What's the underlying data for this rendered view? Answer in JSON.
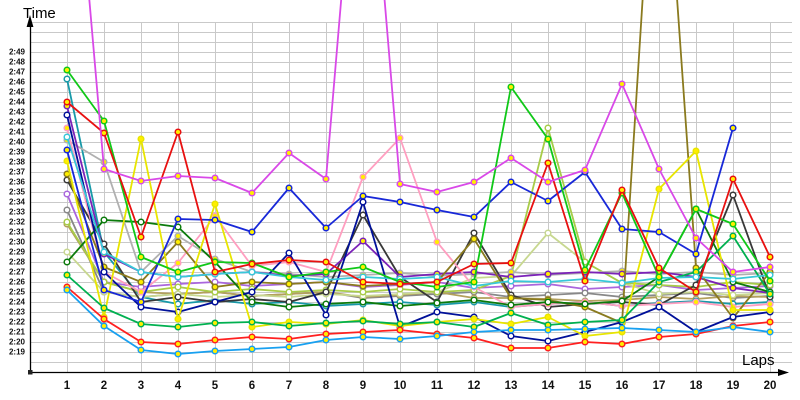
{
  "page": {
    "y_axis_title": "Time",
    "x_axis_title": "Laps"
  },
  "chart_data": {
    "type": "line",
    "title": "",
    "xlabel": "Laps",
    "ylabel": "Time",
    "x": [
      1,
      2,
      3,
      4,
      5,
      6,
      7,
      8,
      9,
      10,
      11,
      12,
      13,
      14,
      15,
      16,
      17,
      18,
      19,
      20
    ],
    "x_tick_labels": [
      "1",
      "2",
      "3",
      "4",
      "5",
      "6",
      "7",
      "8",
      "9",
      "10",
      "11",
      "12",
      "13",
      "14",
      "15",
      "16",
      "17",
      "18",
      "19",
      "20"
    ],
    "y_tick_labels": [
      "2:49",
      "2:48",
      "2:47",
      "2:46",
      "2:45",
      "2:44",
      "2:43",
      "2:42",
      "2:41",
      "2:40",
      "2:39",
      "2:38",
      "2:37",
      "2:36",
      "2:35",
      "2:34",
      "2:33",
      "2:32",
      "2:31",
      "2:30",
      "2:29",
      "2:28",
      "2:27",
      "2:26",
      "2:25",
      "2:24",
      "2:23",
      "2:22",
      "2:21",
      "2:20",
      "2:19"
    ],
    "y_axis": {
      "min_label": "2:19",
      "max_label": "2:49",
      "units": "lap time m:ss, values stored as seconds after 2:00",
      "grid_step_seconds": 1
    },
    "off_scale_value": 200,
    "legend": "none",
    "grid": true,
    "series": [
      {
        "name": "light-purple",
        "color": "#aa66dd",
        "marker_fill": "#ffffff",
        "values": [
          154.8,
          146,
          145.5,
          145.8,
          146,
          145.6,
          145.8,
          146,
          145.5,
          145.7,
          146,
          145.4,
          145.6,
          145.8,
          145.3,
          145.5,
          145.7,
          145.2,
          145.4,
          145.6
        ]
      },
      {
        "name": "gray",
        "color": "#888888",
        "marker_fill": "#ffffff",
        "values": [
          153.2,
          145,
          144.5,
          144.8,
          145,
          144.6,
          144.8,
          145,
          144.4,
          144.6,
          144.8,
          145,
          144.5,
          144.7,
          144.9,
          144.5,
          144.7,
          144.9,
          144.4,
          144.6
        ]
      },
      {
        "name": "khaki",
        "color": "#b3a05c",
        "marker_fill": "#ffffff",
        "values": [
          151.8,
          146,
          145,
          144.8,
          145,
          144.6,
          144.8,
          145,
          144.5,
          144.7,
          145,
          144.4,
          144.4,
          144.3,
          144.1,
          144.2,
          144.5,
          144.3,
          144.6,
          144.5
        ]
      },
      {
        "name": "teal",
        "color": "#1899a8",
        "marker_fill": "#ffffff",
        "values": [
          166.3,
          149,
          144.5,
          143.8,
          144.2,
          143.8,
          144,
          143.6,
          143.8,
          144,
          143.7,
          144,
          143.5,
          143.8,
          144,
          143.6,
          143.9,
          144.1,
          143.8,
          144
        ]
      },
      {
        "name": "pale-sage",
        "color": "#c8d890",
        "marker_fill": "#ffffff",
        "values": [
          149,
          145,
          144.5,
          144.8,
          144.5,
          144.7,
          144.5,
          144.8,
          144.6,
          144.8,
          145,
          146.4,
          146.6,
          150.9,
          148,
          145.9,
          144.8,
          145,
          144.7,
          144.9
        ]
      },
      {
        "name": "sage-green",
        "color": "#a8cc48",
        "marker_fill": "#ffffff",
        "values": [
          152,
          146,
          145,
          145.5,
          145,
          145.3,
          145,
          145.2,
          145,
          145.3,
          145,
          145.2,
          146.6,
          161.4,
          148,
          145.9,
          145.7,
          145.5,
          146,
          145.7
        ]
      },
      {
        "name": "silver",
        "color": "#b0b0b0",
        "marker_fill": "#ffee00",
        "values": [
          160.2,
          158,
          147,
          150.6,
          148.3,
          147,
          146.8,
          146.5,
          146.7,
          146.9,
          146.6,
          146.8,
          147,
          146.7,
          146.9,
          147.1,
          146.8,
          147,
          146.7,
          146.9
        ]
      },
      {
        "name": "black",
        "color": "#383838",
        "marker_fill": "#ffffff",
        "values": [
          156.2,
          149.8,
          144,
          144.5,
          144,
          144.3,
          144,
          145,
          152.7,
          146.5,
          144,
          150.9,
          144.7,
          143.5,
          143.8,
          144,
          143.7,
          145.7,
          154.7,
          144.5
        ]
      },
      {
        "name": "dark-purple",
        "color": "#7b22b8",
        "marker_fill": "#ffee00",
        "values": [
          163.6,
          148.8,
          147,
          146.5,
          146.8,
          147,
          146.6,
          146.8,
          150.1,
          146.5,
          146.8,
          147,
          146.5,
          146.8,
          147,
          146.8,
          147,
          146.5,
          145.4,
          144.9
        ]
      },
      {
        "name": "pink",
        "color": "#ff9ec0",
        "marker_fill": "#ffee00",
        "values": [
          161.4,
          147,
          145,
          147.9,
          152.6,
          147.6,
          148,
          147,
          156.5,
          160.4,
          150,
          145.5,
          143.5,
          143.8,
          144,
          143.6,
          143.8,
          144,
          143.5,
          143.8
        ]
      },
      {
        "name": "olive",
        "color": "#8a7a1e",
        "marker_fill": "#ffee00",
        "values": [
          156.8,
          147.5,
          146,
          150,
          145.5,
          146,
          145.8,
          146,
          145.6,
          145.8,
          146,
          150.3,
          144.4,
          144.2,
          143.5,
          141.9,
          200,
          147.4,
          142.4,
          147
        ]
      },
      {
        "name": "dark-green",
        "color": "#0b7a0b",
        "marker_fill": "#ffffff",
        "values": [
          148,
          152.2,
          152,
          151.5,
          148,
          144,
          143.5,
          143.8,
          144,
          143.6,
          143.9,
          144.2,
          143.7,
          144,
          143.8,
          144.1,
          146.5,
          153.3,
          146,
          145
        ]
      },
      {
        "name": "navy",
        "color": "#001099",
        "marker_fill": "#ffffff",
        "values": [
          162.7,
          147,
          143.5,
          143,
          144,
          145,
          148.9,
          142.7,
          154,
          141.5,
          143,
          142.5,
          140.6,
          140.1,
          141,
          142,
          143.5,
          141,
          142.5,
          143
        ]
      },
      {
        "name": "yellow",
        "color": "#e8e500",
        "marker_fill": "#ffee00",
        "values": [
          158.1,
          142.5,
          160.3,
          142.3,
          153.8,
          141.5,
          142,
          141.8,
          142.2,
          141.6,
          142,
          142.3,
          141.8,
          142.5,
          140.6,
          141,
          155.3,
          159.1,
          143.2,
          143.2
        ]
      },
      {
        "name": "medium-green",
        "color": "#00b050",
        "marker_fill": "#ffee00",
        "values": [
          146.7,
          143.4,
          141.8,
          141.5,
          141.9,
          142,
          141.6,
          141.9,
          142.1,
          141.8,
          142,
          141.5,
          142.9,
          141.7,
          142,
          142.2,
          146,
          147,
          150.6,
          144.8
        ]
      },
      {
        "name": "cyan",
        "color": "#38c8d8",
        "marker_fill": "#ffffff",
        "values": [
          160.5,
          149,
          147,
          146.5,
          146.8,
          147,
          146.5,
          146.2,
          146.5,
          146.3,
          146.5,
          145.6,
          146.1,
          146,
          146.3,
          145.9,
          146.4,
          146.5,
          146.3,
          146.7
        ]
      },
      {
        "name": "bright-red-low",
        "color": "#ff2020",
        "marker_fill": "#ffee00",
        "values": [
          145.5,
          142.3,
          140,
          139.8,
          140.2,
          140.5,
          140.3,
          140.8,
          141,
          141.2,
          140.8,
          140.4,
          139.4,
          139.4,
          140,
          139.8,
          140.5,
          140.8,
          141.6,
          142
        ]
      },
      {
        "name": "sky-blue",
        "color": "#18a0f0",
        "marker_fill": "#ffee00",
        "values": [
          145.2,
          141.6,
          139.2,
          138.8,
          139.1,
          139.3,
          139.5,
          140.2,
          140.5,
          140.3,
          140.6,
          141,
          141.2,
          141.2,
          141.3,
          141.4,
          141.2,
          141,
          141.5,
          141
        ]
      },
      {
        "name": "royal-blue",
        "color": "#1828d8",
        "marker_fill": "#ffee00",
        "values": [
          159.2,
          145.2,
          144,
          152.3,
          152.2,
          151,
          155.4,
          151.4,
          154.6,
          154,
          153.2,
          152.5,
          156,
          154.1,
          157,
          151.3,
          151,
          148.8,
          161.4,
          null
        ]
      },
      {
        "name": "bright-green",
        "color": "#10c818",
        "marker_fill": "#ffee00",
        "values": [
          167.2,
          162.1,
          148.5,
          147,
          148,
          147.9,
          146.5,
          147,
          147.5,
          146,
          145.5,
          146,
          165.5,
          160.3,
          147.2,
          154.9,
          146.5,
          153.3,
          151.8,
          146.1
        ]
      },
      {
        "name": "red",
        "color": "#e81010",
        "marker_fill": "#ffee00",
        "values": [
          164,
          160.9,
          150.5,
          161,
          147,
          147.8,
          148.2,
          148,
          146,
          145.8,
          146,
          147.8,
          147.9,
          157.9,
          146.1,
          155.2,
          147.4,
          145,
          156.3,
          148.5
        ]
      },
      {
        "name": "violet",
        "color": "#d949e8",
        "marker_fill": "#ffee00",
        "values": [
          200,
          157.3,
          156.1,
          156.6,
          156.4,
          154.9,
          158.9,
          156.3,
          200,
          155.8,
          155,
          156,
          158.4,
          156,
          157.2,
          165.8,
          157.3,
          150.4,
          147,
          147.5
        ]
      }
    ]
  },
  "style": {
    "grid_color": "#c9c9c9",
    "axis_color": "#000000",
    "label_color": "#111111",
    "marker_yellow": "#ffee00",
    "background": "#ffffff"
  }
}
